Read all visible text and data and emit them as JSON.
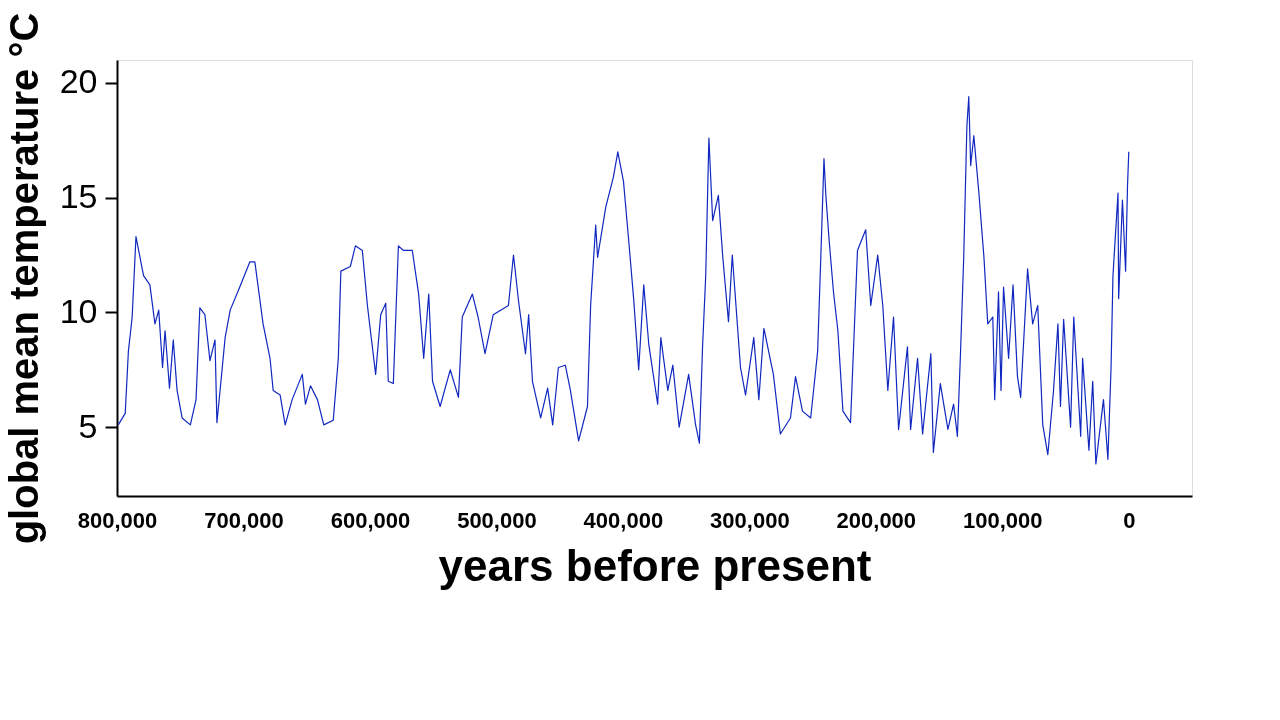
{
  "chart_data": {
    "type": "line",
    "xlabel": "years before present",
    "ylabel": "global mean temperature °C",
    "xlim": [
      800000,
      -50000
    ],
    "ylim": [
      2,
      21
    ],
    "xticks": [
      {
        "value": 800000,
        "label": "800,000"
      },
      {
        "value": 700000,
        "label": "700,000"
      },
      {
        "value": 600000,
        "label": "600,000"
      },
      {
        "value": 500000,
        "label": "500,000"
      },
      {
        "value": 400000,
        "label": "400,000"
      },
      {
        "value": 300000,
        "label": "300,000"
      },
      {
        "value": 200000,
        "label": "200,000"
      },
      {
        "value": 100000,
        "label": "100,000"
      },
      0
    ],
    "yticks": [
      5,
      10,
      15,
      20
    ],
    "grid": false,
    "legend": false,
    "marker": "none",
    "line_style": "solid",
    "x": [
      799000,
      793500,
      791000,
      788000,
      785000,
      779000,
      774000,
      770000,
      767000,
      764000,
      762000,
      758500,
      755500,
      752500,
      748500,
      742000,
      737500,
      734500,
      730500,
      726500,
      722500,
      721000,
      718500,
      714500,
      710500,
      703000,
      695000,
      691000,
      684500,
      679000,
      676500,
      671000,
      667000,
      661500,
      653500,
      651000,
      647000,
      641500,
      636500,
      629000,
      625000,
      623000,
      615500,
      611500,
      606000,
      602000,
      595500,
      591500,
      587500,
      585500,
      581500,
      577500,
      573500,
      566500,
      561500,
      557500,
      553500,
      550500,
      544500,
      536500,
      530000,
      527000,
      519000,
      514500,
      509000,
      502500,
      490500,
      486500,
      482500,
      477000,
      474500,
      471500,
      465000,
      459500,
      455500,
      451000,
      445500,
      441500,
      435000,
      428000,
      425500,
      421500,
      420000,
      413500,
      407500,
      404000,
      399500,
      395500,
      391500,
      387500,
      383500,
      379500,
      372500,
      370000,
      364500,
      360500,
      355500,
      348000,
      342500,
      339500,
      337000,
      334500,
      332000,
      329000,
      324500,
      321000,
      316500,
      313500,
      307000,
      303000,
      296500,
      292500,
      288500,
      281000,
      275500,
      267500,
      263500,
      258000,
      251500,
      246000,
      243500,
      241000,
      239500,
      237000,
      233500,
      230000,
      226000,
      220000,
      214500,
      208000,
      204000,
      198500,
      194500,
      190500,
      186000,
      182000,
      175000,
      172500,
      167000,
      163000,
      156500,
      154500,
      149000,
      143000,
      138500,
      135500,
      133000,
      130500,
      128000,
      126500,
      125000,
      122500,
      118500,
      114500,
      111500,
      107500,
      106000,
      103000,
      101000,
      99000,
      95000,
      91500,
      88000,
      85500,
      80000,
      76000,
      72000,
      68000,
      64000,
      59500,
      56000,
      54000,
      51500,
      46000,
      43500,
      38000,
      36500,
      31500,
      28500,
      26000,
      20000,
      16500,
      14000,
      12500,
      8500,
      8000,
      5000,
      2500,
      1000,
      0
    ],
    "series": [
      {
        "color": "#1028c0",
        "values": [
          5.1,
          5.6,
          8.3,
          9.8,
          13.3,
          11.6,
          11.2,
          9.5,
          10.1,
          7.6,
          9.2,
          6.7,
          8.8,
          6.6,
          5.4,
          5.1,
          6.2,
          10.2,
          9.9,
          7.9,
          8.8,
          5.2,
          6.6,
          8.9,
          10.1,
          11.1,
          12.2,
          12.2,
          9.5,
          8.0,
          6.6,
          6.4,
          5.1,
          6.2,
          7.3,
          6.0,
          6.8,
          6.2,
          5.1,
          5.3,
          8.0,
          11.8,
          12.0,
          12.9,
          12.7,
          10.3,
          7.3,
          9.9,
          10.4,
          7.0,
          6.9,
          12.9,
          12.7,
          12.7,
          10.8,
          8.0,
          10.8,
          7.0,
          5.9,
          7.5,
          6.3,
          9.8,
          10.8,
          9.8,
          8.2,
          9.9,
          10.3,
          12.5,
          10.5,
          8.2,
          9.9,
          7.0,
          5.4,
          6.7,
          5.1,
          7.6,
          7.7,
          6.6,
          4.4,
          5.9,
          10.3,
          13.8,
          12.4,
          14.6,
          15.9,
          17.0,
          15.7,
          13.2,
          10.6,
          7.5,
          11.2,
          8.6,
          6.0,
          8.9,
          6.6,
          7.7,
          5.0,
          7.3,
          5.1,
          4.3,
          8.5,
          11.6,
          17.6,
          14.0,
          15.1,
          12.4,
          9.6,
          12.5,
          7.6,
          6.4,
          8.9,
          6.2,
          9.3,
          7.3,
          4.7,
          5.4,
          7.2,
          5.7,
          5.4,
          8.3,
          12.4,
          16.7,
          15.1,
          13.2,
          10.9,
          9.2,
          5.7,
          5.2,
          12.7,
          13.6,
          10.3,
          12.5,
          10.3,
          6.6,
          9.8,
          4.9,
          8.5,
          4.9,
          8.0,
          4.7,
          8.2,
          3.9,
          6.9,
          4.9,
          6.0,
          4.6,
          8.3,
          12.4,
          18.1,
          19.4,
          16.4,
          17.7,
          15.2,
          12.4,
          9.5,
          9.8,
          6.2,
          10.9,
          6.6,
          11.1,
          8.0,
          11.2,
          7.2,
          6.3,
          11.9,
          9.5,
          10.3,
          5.1,
          3.8,
          6.6,
          9.5,
          5.9,
          9.7,
          5.0,
          9.8,
          4.6,
          8.0,
          4.0,
          7.0,
          3.4,
          6.2,
          3.6,
          7.6,
          11.6,
          15.2,
          10.6,
          14.9,
          11.8,
          15.5,
          17.0
        ]
      }
    ]
  }
}
